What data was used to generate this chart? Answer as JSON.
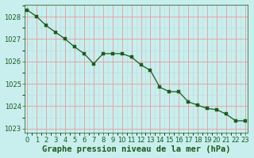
{
  "x": [
    0,
    1,
    2,
    3,
    4,
    5,
    6,
    7,
    8,
    9,
    10,
    11,
    12,
    13,
    14,
    15,
    16,
    17,
    18,
    19,
    20,
    21,
    22,
    23
  ],
  "y": [
    1028.3,
    1028.0,
    1027.6,
    1027.3,
    1027.0,
    1026.65,
    1026.35,
    1025.9,
    1026.35,
    1026.35,
    1026.35,
    1026.2,
    1025.85,
    1025.6,
    1024.85,
    1024.65,
    1024.65,
    1024.2,
    1024.05,
    1023.9,
    1023.85,
    1023.65,
    1023.35,
    1023.35
  ],
  "line_color": "#1a5c1a",
  "marker_color": "#1a5c1a",
  "bg_color": "#c8eeee",
  "grid_major_color": "#ee9999",
  "grid_minor_color": "#b8dddd",
  "ylim": [
    1022.8,
    1028.55
  ],
  "yticks": [
    1023,
    1024,
    1025,
    1026,
    1027,
    1028
  ],
  "xticks": [
    0,
    1,
    2,
    3,
    4,
    5,
    6,
    7,
    8,
    9,
    10,
    11,
    12,
    13,
    14,
    15,
    16,
    17,
    18,
    19,
    20,
    21,
    22,
    23
  ],
  "xlabel": "Graphe pression niveau de la mer (hPa)",
  "xlabel_fontsize": 7.5,
  "tick_fontsize": 6.0,
  "text_color": "#1a5c1a"
}
